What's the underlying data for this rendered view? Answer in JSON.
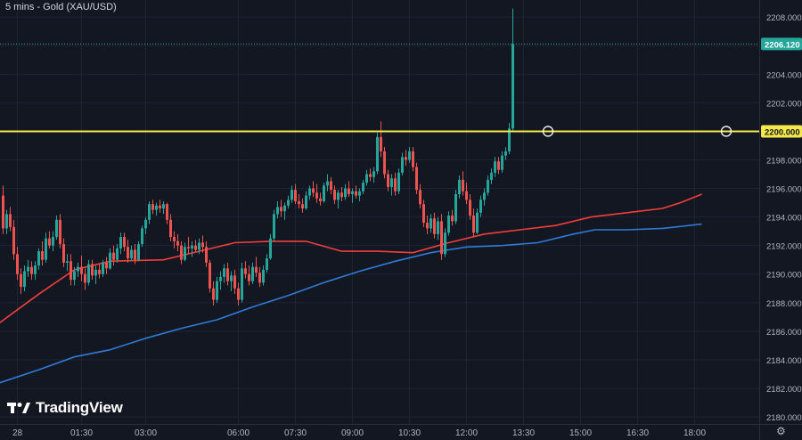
{
  "header": {
    "title": "5 mins - Gold (XAU/USD)"
  },
  "brand": {
    "name": "TradingView"
  },
  "colors": {
    "background": "#131722",
    "grid": "#1f2433",
    "up": "#26a69a",
    "down": "#ef5350",
    "ma_fast": "#f23f3c",
    "ma_slow": "#2f7bd6",
    "level": "#f5e84a",
    "price_label": "#26a69a"
  },
  "chart_data": {
    "type": "candlestick",
    "title": "5 mins - Gold (XAU/USD)",
    "xlabel": "",
    "ylabel": "",
    "ylim": [
      2179.5,
      2209.2
    ],
    "grid": true,
    "x_ticks": [
      {
        "label": "28",
        "i": 4
      },
      {
        "label": "01:30",
        "i": 22
      },
      {
        "label": "03:00",
        "i": 40
      },
      {
        "label": "06:00",
        "i": 66
      },
      {
        "label": "07:30",
        "i": 82
      },
      {
        "label": "09:00",
        "i": 98
      },
      {
        "label": "10:30",
        "i": 114
      },
      {
        "label": "12:00",
        "i": 130
      },
      {
        "label": "13:30",
        "i": 146
      },
      {
        "label": "15:00",
        "i": 162
      },
      {
        "label": "16:30",
        "i": 178
      },
      {
        "label": "18:00",
        "i": 194
      }
    ],
    "y_ticks": [
      2180,
      2182,
      2184,
      2186,
      2188,
      2190,
      2192,
      2194,
      2196,
      2198,
      2200,
      2202,
      2204,
      2206,
      2208
    ],
    "y_tick_labels": [
      "2180.000",
      "2182.000",
      "2184.000",
      "2186.000",
      "2188.000",
      "2190.000",
      "2192.000",
      "2194.000",
      "2196.000",
      "2198.000",
      "2200.000",
      "2202.000",
      "2204.000",
      "2206.000",
      "2208.000"
    ],
    "horizontal_level": {
      "value": 2200.0,
      "label": "2200.000"
    },
    "last_price": {
      "value": 2206.12,
      "label": "2206.120"
    },
    "series": [
      {
        "name": "",
        "kind": "ma",
        "color": "#f23f3c",
        "points": [
          [
            -2,
            2186.4
          ],
          [
            10,
            2188.6
          ],
          [
            20,
            2190.3
          ],
          [
            30,
            2190.9
          ],
          [
            45,
            2191.0
          ],
          [
            55,
            2191.6
          ],
          [
            65,
            2192.2
          ],
          [
            75,
            2192.3
          ],
          [
            85,
            2192.3
          ],
          [
            95,
            2191.6
          ],
          [
            105,
            2191.6
          ],
          [
            115,
            2191.5
          ],
          [
            125,
            2192.2
          ],
          [
            135,
            2192.8
          ],
          [
            145,
            2193.1
          ],
          [
            155,
            2193.4
          ],
          [
            165,
            2194.0
          ],
          [
            175,
            2194.3
          ],
          [
            185,
            2194.6
          ],
          [
            190,
            2195.0
          ],
          [
            196,
            2195.6
          ]
        ]
      },
      {
        "name": "",
        "kind": "ma",
        "color": "#2f7bd6",
        "points": [
          [
            -2,
            2182.3
          ],
          [
            10,
            2183.3
          ],
          [
            20,
            2184.2
          ],
          [
            30,
            2184.7
          ],
          [
            40,
            2185.5
          ],
          [
            50,
            2186.2
          ],
          [
            60,
            2186.8
          ],
          [
            70,
            2187.7
          ],
          [
            80,
            2188.5
          ],
          [
            90,
            2189.4
          ],
          [
            100,
            2190.2
          ],
          [
            110,
            2190.9
          ],
          [
            120,
            2191.5
          ],
          [
            130,
            2191.9
          ],
          [
            140,
            2192.0
          ],
          [
            150,
            2192.2
          ],
          [
            160,
            2192.8
          ],
          [
            166,
            2193.1
          ],
          [
            175,
            2193.1
          ],
          [
            185,
            2193.2
          ],
          [
            196,
            2193.5
          ]
        ]
      }
    ],
    "candles_ohlc": [
      [
        2195.5,
        2196.2,
        2192.8,
        2193.2
      ],
      [
        2193.2,
        2194.5,
        2192.8,
        2194.2
      ],
      [
        2194.2,
        2194.7,
        2193.0,
        2193.3
      ],
      [
        2193.3,
        2193.8,
        2191.0,
        2191.4
      ],
      [
        2191.4,
        2191.9,
        2189.6,
        2190.0
      ],
      [
        2190.0,
        2190.4,
        2188.6,
        2189.1
      ],
      [
        2189.1,
        2190.6,
        2188.8,
        2190.2
      ],
      [
        2190.2,
        2191.0,
        2189.8,
        2190.5
      ],
      [
        2190.5,
        2190.9,
        2189.6,
        2190.0
      ],
      [
        2190.0,
        2190.9,
        2189.6,
        2190.6
      ],
      [
        2190.6,
        2191.8,
        2190.3,
        2191.6
      ],
      [
        2191.6,
        2192.3,
        2190.6,
        2191.0
      ],
      [
        2191.0,
        2192.9,
        2190.8,
        2192.5
      ],
      [
        2192.5,
        2193.0,
        2191.8,
        2192.0
      ],
      [
        2192.0,
        2193.0,
        2191.6,
        2192.6
      ],
      [
        2192.6,
        2194.1,
        2192.4,
        2193.8
      ],
      [
        2193.8,
        2194.2,
        2191.8,
        2192.1
      ],
      [
        2192.1,
        2192.5,
        2190.5,
        2190.8
      ],
      [
        2190.8,
        2191.4,
        2190.2,
        2190.9
      ],
      [
        2190.9,
        2191.4,
        2189.2,
        2189.6
      ],
      [
        2189.6,
        2190.5,
        2189.2,
        2190.2
      ],
      [
        2190.2,
        2190.8,
        2189.8,
        2190.5
      ],
      [
        2190.5,
        2191.3,
        2189.5,
        2190.0
      ],
      [
        2190.0,
        2190.4,
        2188.9,
        2189.4
      ],
      [
        2189.4,
        2191.0,
        2189.2,
        2190.7
      ],
      [
        2190.7,
        2191.0,
        2189.6,
        2189.9
      ],
      [
        2189.9,
        2190.6,
        2189.3,
        2190.3
      ],
      [
        2190.3,
        2190.7,
        2189.7,
        2190.0
      ],
      [
        2190.0,
        2191.0,
        2189.8,
        2190.8
      ],
      [
        2190.8,
        2191.2,
        2190.0,
        2190.4
      ],
      [
        2190.4,
        2191.8,
        2190.3,
        2191.5
      ],
      [
        2191.5,
        2192.0,
        2190.6,
        2191.0
      ],
      [
        2191.0,
        2192.1,
        2190.8,
        2191.8
      ],
      [
        2191.8,
        2192.9,
        2191.4,
        2192.6
      ],
      [
        2192.6,
        2192.9,
        2191.6,
        2191.9
      ],
      [
        2191.9,
        2192.4,
        2190.8,
        2191.1
      ],
      [
        2191.1,
        2192.0,
        2190.9,
        2191.7
      ],
      [
        2191.7,
        2192.1,
        2190.7,
        2191.0
      ],
      [
        2191.0,
        2192.3,
        2190.9,
        2192.1
      ],
      [
        2192.1,
        2193.4,
        2191.9,
        2193.2
      ],
      [
        2193.2,
        2194.0,
        2192.8,
        2193.8
      ],
      [
        2193.8,
        2195.1,
        2193.5,
        2194.9
      ],
      [
        2194.9,
        2195.2,
        2194.2,
        2194.5
      ],
      [
        2194.5,
        2195.0,
        2194.1,
        2194.8
      ],
      [
        2194.8,
        2195.2,
        2194.3,
        2194.6
      ],
      [
        2194.6,
        2195.1,
        2194.2,
        2194.9
      ],
      [
        2194.9,
        2195.0,
        2193.5,
        2193.8
      ],
      [
        2193.8,
        2194.2,
        2192.3,
        2192.6
      ],
      [
        2192.6,
        2193.0,
        2191.8,
        2192.3
      ],
      [
        2192.3,
        2192.8,
        2191.6,
        2192.0
      ],
      [
        2192.0,
        2192.3,
        2190.7,
        2191.0
      ],
      [
        2191.0,
        2192.2,
        2190.9,
        2191.9
      ],
      [
        2191.9,
        2192.6,
        2191.4,
        2191.8
      ],
      [
        2191.8,
        2192.3,
        2191.2,
        2192.0
      ],
      [
        2192.0,
        2192.4,
        2191.5,
        2191.7
      ],
      [
        2191.7,
        2192.5,
        2191.4,
        2192.2
      ],
      [
        2192.2,
        2192.7,
        2191.5,
        2191.9
      ],
      [
        2191.9,
        2192.3,
        2190.5,
        2190.8
      ],
      [
        2190.8,
        2191.0,
        2188.7,
        2189.0
      ],
      [
        2189.0,
        2189.5,
        2187.8,
        2188.2
      ],
      [
        2188.2,
        2189.8,
        2188.0,
        2189.5
      ],
      [
        2189.5,
        2190.2,
        2188.9,
        2189.8
      ],
      [
        2189.8,
        2190.7,
        2189.4,
        2190.4
      ],
      [
        2190.4,
        2190.8,
        2189.2,
        2189.5
      ],
      [
        2189.5,
        2190.2,
        2188.8,
        2189.9
      ],
      [
        2189.9,
        2190.3,
        2188.6,
        2189.0
      ],
      [
        2189.0,
        2189.4,
        2187.8,
        2188.2
      ],
      [
        2188.2,
        2190.8,
        2188.0,
        2190.4
      ],
      [
        2190.4,
        2190.9,
        2189.7,
        2190.0
      ],
      [
        2190.0,
        2190.6,
        2189.2,
        2189.5
      ],
      [
        2189.5,
        2190.8,
        2189.3,
        2190.5
      ],
      [
        2190.5,
        2191.2,
        2189.8,
        2190.1
      ],
      [
        2190.1,
        2190.5,
        2189.1,
        2189.4
      ],
      [
        2189.4,
        2190.6,
        2189.2,
        2190.3
      ],
      [
        2190.3,
        2191.4,
        2190.1,
        2191.1
      ],
      [
        2191.1,
        2192.8,
        2191.0,
        2192.5
      ],
      [
        2192.5,
        2194.5,
        2192.3,
        2194.2
      ],
      [
        2194.2,
        2195.1,
        2193.9,
        2194.7
      ],
      [
        2194.7,
        2195.2,
        2194.0,
        2194.4
      ],
      [
        2194.4,
        2195.0,
        2193.8,
        2194.8
      ],
      [
        2194.8,
        2195.5,
        2194.6,
        2195.2
      ],
      [
        2195.2,
        2196.2,
        2195.0,
        2195.9
      ],
      [
        2195.9,
        2196.3,
        2194.9,
        2195.1
      ],
      [
        2195.1,
        2195.6,
        2194.6,
        2194.9
      ],
      [
        2194.9,
        2195.3,
        2194.3,
        2194.6
      ],
      [
        2194.6,
        2195.8,
        2194.5,
        2195.5
      ],
      [
        2195.5,
        2196.2,
        2195.2,
        2196.0
      ],
      [
        2196.0,
        2196.5,
        2195.4,
        2195.7
      ],
      [
        2195.7,
        2196.3,
        2195.0,
        2195.3
      ],
      [
        2195.3,
        2195.7,
        2194.8,
        2195.1
      ],
      [
        2195.1,
        2196.4,
        2195.0,
        2196.2
      ],
      [
        2196.2,
        2197.0,
        2195.8,
        2196.5
      ],
      [
        2196.5,
        2196.8,
        2195.6,
        2195.9
      ],
      [
        2195.9,
        2196.2,
        2194.9,
        2195.2
      ],
      [
        2195.2,
        2195.9,
        2194.6,
        2195.7
      ],
      [
        2195.7,
        2196.1,
        2195.1,
        2195.4
      ],
      [
        2195.4,
        2196.3,
        2195.2,
        2196.0
      ],
      [
        2196.0,
        2196.5,
        2195.4,
        2195.6
      ],
      [
        2195.6,
        2196.0,
        2195.0,
        2195.8
      ],
      [
        2195.8,
        2196.2,
        2195.3,
        2195.5
      ],
      [
        2195.5,
        2196.0,
        2195.1,
        2195.8
      ],
      [
        2195.8,
        2196.6,
        2195.6,
        2196.4
      ],
      [
        2196.4,
        2197.3,
        2196.2,
        2197.0
      ],
      [
        2197.0,
        2197.4,
        2196.5,
        2196.8
      ],
      [
        2196.8,
        2197.5,
        2196.4,
        2197.2
      ],
      [
        2197.2,
        2199.9,
        2197.0,
        2199.6
      ],
      [
        2199.6,
        2200.7,
        2198.2,
        2198.6
      ],
      [
        2198.6,
        2198.9,
        2196.7,
        2197.0
      ],
      [
        2197.0,
        2197.3,
        2195.8,
        2196.1
      ],
      [
        2196.1,
        2197.0,
        2195.5,
        2196.7
      ],
      [
        2196.7,
        2197.1,
        2195.5,
        2195.8
      ],
      [
        2195.8,
        2197.4,
        2195.6,
        2197.1
      ],
      [
        2197.1,
        2198.5,
        2196.9,
        2198.2
      ],
      [
        2198.2,
        2198.7,
        2197.6,
        2198.0
      ],
      [
        2198.0,
        2198.9,
        2197.8,
        2198.6
      ],
      [
        2198.6,
        2198.9,
        2197.2,
        2197.5
      ],
      [
        2197.5,
        2197.8,
        2195.6,
        2195.9
      ],
      [
        2195.9,
        2196.3,
        2194.6,
        2194.9
      ],
      [
        2194.9,
        2195.2,
        2193.3,
        2193.6
      ],
      [
        2193.6,
        2194.1,
        2192.8,
        2193.2
      ],
      [
        2193.2,
        2194.2,
        2192.9,
        2193.9
      ],
      [
        2193.9,
        2194.3,
        2192.5,
        2192.8
      ],
      [
        2192.8,
        2194.0,
        2192.4,
        2193.7
      ],
      [
        2193.7,
        2194.2,
        2191.0,
        2191.4
      ],
      [
        2191.4,
        2193.2,
        2191.2,
        2192.9
      ],
      [
        2192.9,
        2194.4,
        2192.7,
        2194.1
      ],
      [
        2194.1,
        2194.5,
        2193.4,
        2193.7
      ],
      [
        2193.7,
        2195.9,
        2193.5,
        2195.6
      ],
      [
        2195.6,
        2196.9,
        2195.3,
        2196.6
      ],
      [
        2196.6,
        2197.2,
        2195.5,
        2195.8
      ],
      [
        2195.8,
        2196.4,
        2194.9,
        2195.2
      ],
      [
        2195.2,
        2195.6,
        2193.8,
        2194.1
      ],
      [
        2194.1,
        2194.6,
        2192.6,
        2192.9
      ],
      [
        2192.9,
        2194.6,
        2192.8,
        2194.3
      ],
      [
        2194.3,
        2195.5,
        2194.0,
        2195.2
      ],
      [
        2195.2,
        2196.0,
        2194.8,
        2195.7
      ],
      [
        2195.7,
        2196.9,
        2195.5,
        2196.6
      ],
      [
        2196.6,
        2197.4,
        2196.3,
        2197.1
      ],
      [
        2197.1,
        2198.2,
        2196.8,
        2197.9
      ],
      [
        2197.9,
        2198.2,
        2197.0,
        2197.3
      ],
      [
        2197.3,
        2198.6,
        2197.1,
        2198.3
      ],
      [
        2198.3,
        2198.9,
        2198.0,
        2198.6
      ],
      [
        2198.6,
        2200.6,
        2198.4,
        2200.2
      ],
      [
        2200.2,
        2208.6,
        2200.0,
        2206.12
      ]
    ]
  }
}
